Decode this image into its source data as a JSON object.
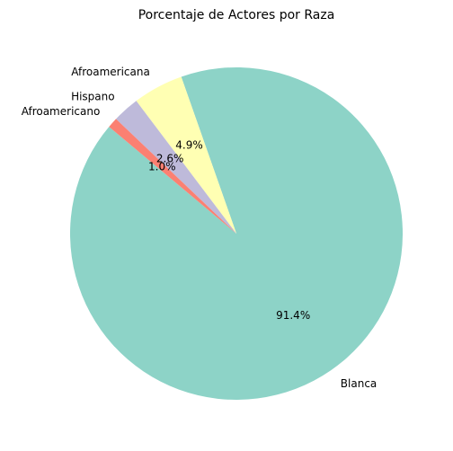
{
  "chart_data": {
    "type": "pie",
    "title": "Porcentaje de Actores por Raza",
    "start_angle_deg": 140,
    "direction": "counterclockwise",
    "slices": [
      {
        "label": "Blanca",
        "value": 91.4,
        "pct_label": "91.4%",
        "color": "#8dd3c7"
      },
      {
        "label": "Afroamericana",
        "value": 4.9,
        "pct_label": "4.9%",
        "color": "#ffffb3"
      },
      {
        "label": "Hispano",
        "value": 2.6,
        "pct_label": "2.6%",
        "color": "#bebada"
      },
      {
        "label": "Afroamericano",
        "value": 1.0,
        "pct_label": "1.0%",
        "color": "#fb8072"
      }
    ]
  }
}
